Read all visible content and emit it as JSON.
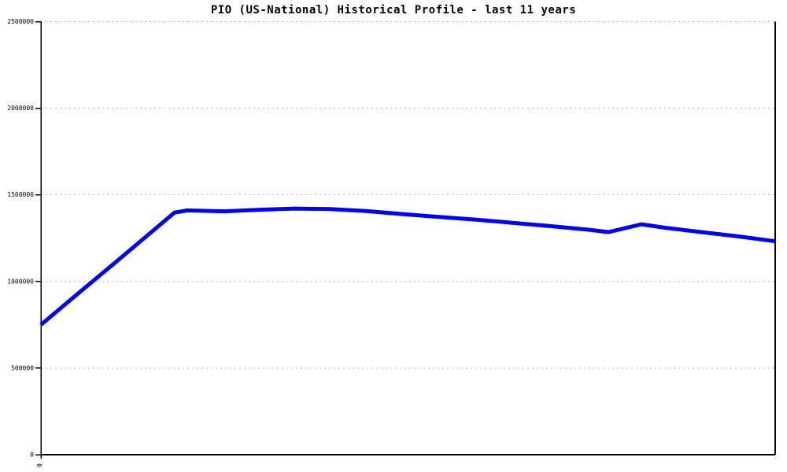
{
  "chart_data": {
    "type": "line",
    "title": "PIO (US-National) Historical Profile - last 11 years",
    "xlabel": "",
    "ylabel": "",
    "xlim": [
      0,
      1
    ],
    "ylim": [
      0,
      2500000
    ],
    "grid": true,
    "legend": false,
    "y_ticks": [
      {
        "value": 0,
        "label": "0"
      },
      {
        "value": 500000,
        "label": "500000"
      },
      {
        "value": 1000000,
        "label": "1000000"
      },
      {
        "value": 1500000,
        "label": "1500000"
      },
      {
        "value": 2000000,
        "label": "2000000"
      },
      {
        "value": 2500000,
        "label": "2500000"
      }
    ],
    "x_ticks": [
      {
        "value": 0,
        "label": "0"
      }
    ],
    "colors": {
      "line": "#0000ff",
      "grid": "#b4b4b4",
      "axis": "#000000",
      "background": "#ffffff"
    },
    "series": [
      {
        "name": "PIO (US-National) historical profile",
        "color": "#0000ff",
        "line_width": 5,
        "points": [
          {
            "x": 0.0,
            "y": 750000
          },
          {
            "x": 0.049,
            "y": 925000
          },
          {
            "x": 0.1,
            "y": 1105000
          },
          {
            "x": 0.149,
            "y": 1280000
          },
          {
            "x": 0.182,
            "y": 1398000
          },
          {
            "x": 0.199,
            "y": 1410000
          },
          {
            "x": 0.25,
            "y": 1405000
          },
          {
            "x": 0.298,
            "y": 1414000
          },
          {
            "x": 0.346,
            "y": 1421000
          },
          {
            "x": 0.394,
            "y": 1418000
          },
          {
            "x": 0.443,
            "y": 1407000
          },
          {
            "x": 0.492,
            "y": 1389000
          },
          {
            "x": 0.542,
            "y": 1373000
          },
          {
            "x": 0.593,
            "y": 1357000
          },
          {
            "x": 0.642,
            "y": 1339000
          },
          {
            "x": 0.692,
            "y": 1320000
          },
          {
            "x": 0.743,
            "y": 1300000
          },
          {
            "x": 0.773,
            "y": 1285000
          },
          {
            "x": 0.818,
            "y": 1330000
          },
          {
            "x": 0.85,
            "y": 1310000
          },
          {
            "x": 0.899,
            "y": 1285000
          },
          {
            "x": 0.95,
            "y": 1260000
          },
          {
            "x": 1.0,
            "y": 1232000
          }
        ]
      }
    ]
  }
}
